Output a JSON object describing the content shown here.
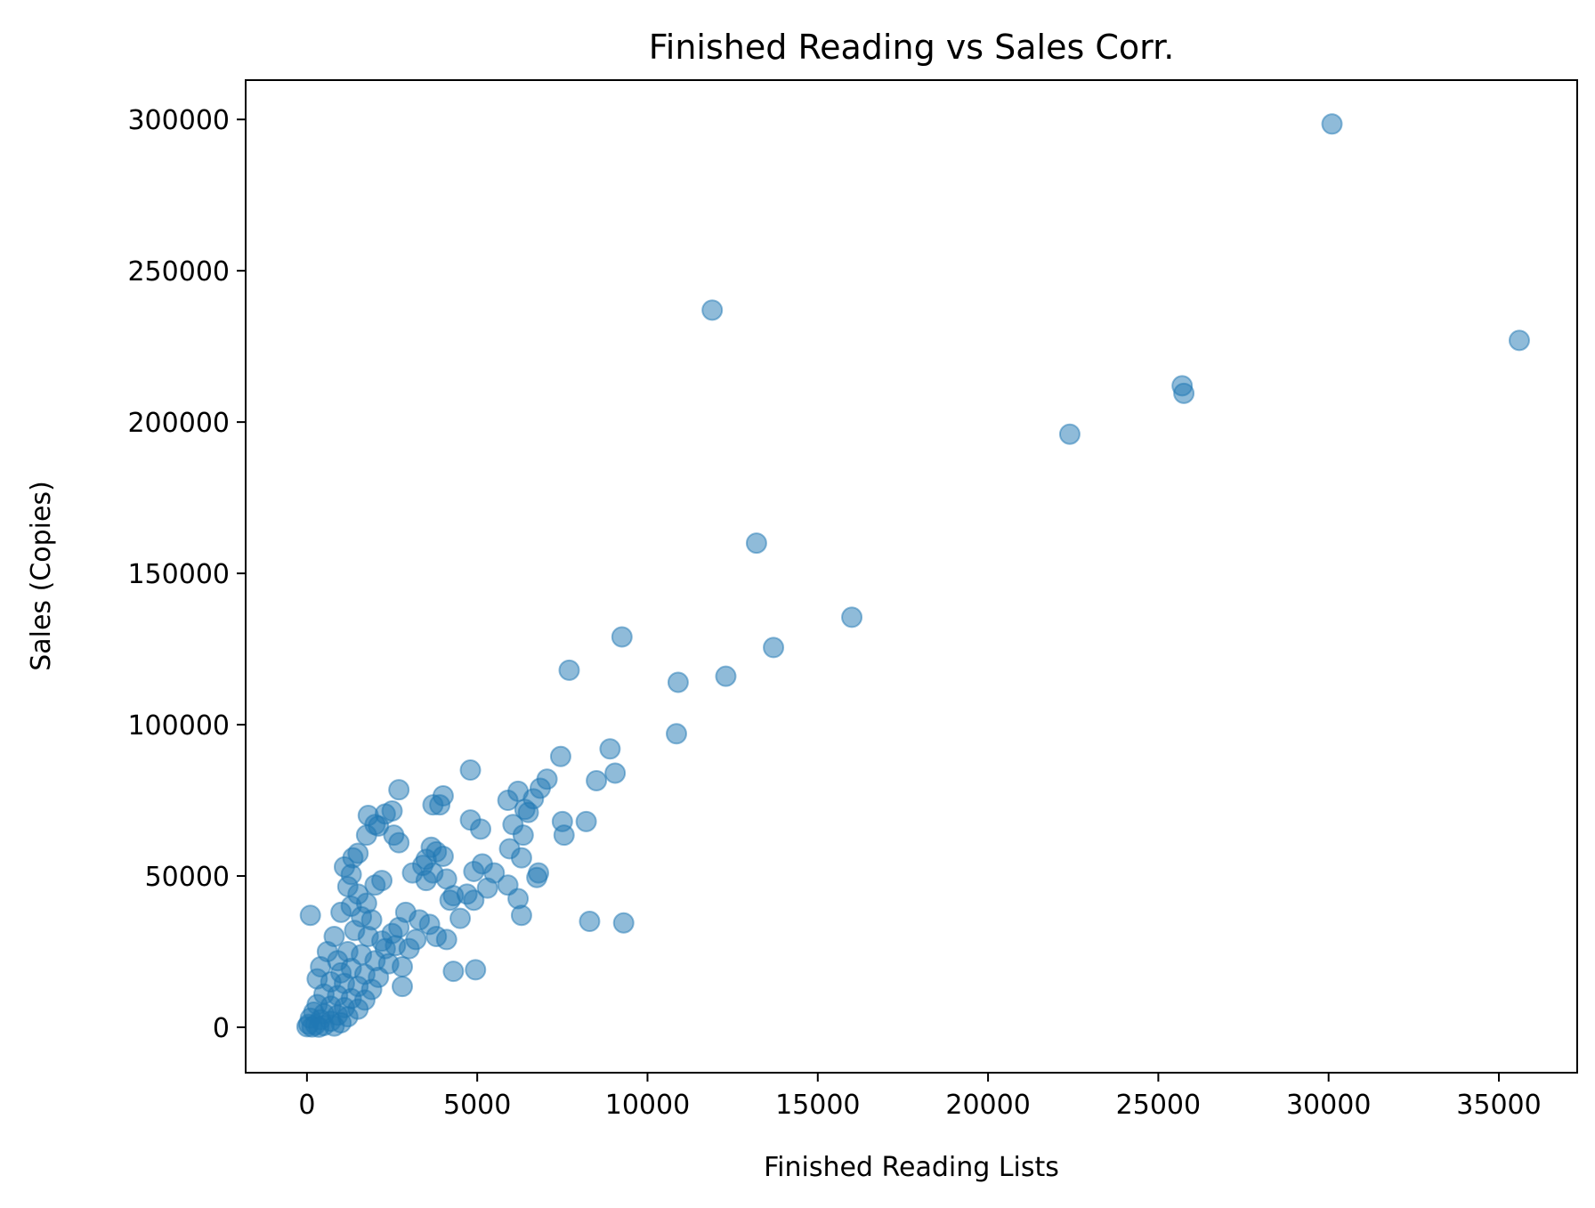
{
  "chart_data": {
    "type": "scatter",
    "title": "Finished Reading vs Sales Corr.",
    "xlabel": "Finished Reading Lists",
    "ylabel": "Sales (Copies)",
    "xlim": [
      -1800,
      37300
    ],
    "ylim": [
      -15000,
      313000
    ],
    "xticks": [
      0,
      5000,
      10000,
      15000,
      20000,
      25000,
      30000,
      35000
    ],
    "xtick_labels": [
      "0",
      "5000",
      "10000",
      "15000",
      "20000",
      "25000",
      "30000",
      "35000"
    ],
    "yticks": [
      0,
      50000,
      100000,
      150000,
      200000,
      250000,
      300000
    ],
    "ytick_labels": [
      "0",
      "50000",
      "100000",
      "150000",
      "200000",
      "250000",
      "300000"
    ],
    "grid": false,
    "colors": {
      "marker": "#1f77b4"
    },
    "marker_alpha": 0.5,
    "series": [
      {
        "points": [
          [
            30100,
            298500
          ],
          [
            11900,
            237000
          ],
          [
            35600,
            227000
          ],
          [
            25700,
            212000
          ],
          [
            25750,
            209500
          ],
          [
            22400,
            196000
          ],
          [
            13200,
            160000
          ],
          [
            16000,
            135500
          ],
          [
            9250,
            129000
          ],
          [
            13700,
            125500
          ],
          [
            7700,
            118000
          ],
          [
            12300,
            116000
          ],
          [
            10900,
            114000
          ],
          [
            10850,
            97000
          ],
          [
            8900,
            92000
          ],
          [
            7450,
            89500
          ],
          [
            4800,
            85000
          ],
          [
            9050,
            84000
          ],
          [
            8500,
            81500
          ],
          [
            7050,
            82000
          ],
          [
            6850,
            79000
          ],
          [
            2700,
            78500
          ],
          [
            6200,
            78000
          ],
          [
            4000,
            76500
          ],
          [
            5900,
            75000
          ],
          [
            6650,
            75500
          ],
          [
            3900,
            73500
          ],
          [
            3700,
            73500
          ],
          [
            6500,
            71000
          ],
          [
            6400,
            72000
          ],
          [
            1800,
            70000
          ],
          [
            2500,
            71500
          ],
          [
            2300,
            70500
          ],
          [
            7500,
            68000
          ],
          [
            8200,
            68000
          ],
          [
            4800,
            68500
          ],
          [
            6050,
            67000
          ],
          [
            2100,
            66500
          ],
          [
            2000,
            67000
          ],
          [
            5100,
            65500
          ],
          [
            1750,
            63500
          ],
          [
            2550,
            63500
          ],
          [
            7550,
            63500
          ],
          [
            6350,
            63500
          ],
          [
            2700,
            61000
          ],
          [
            1500,
            57500
          ],
          [
            3650,
            59500
          ],
          [
            3800,
            58000
          ],
          [
            5950,
            59000
          ],
          [
            1350,
            56000
          ],
          [
            4000,
            56500
          ],
          [
            6300,
            56000
          ],
          [
            3500,
            55500
          ],
          [
            5150,
            54000
          ],
          [
            3400,
            53500
          ],
          [
            1100,
            53000
          ],
          [
            1300,
            50500
          ],
          [
            2200,
            48500
          ],
          [
            3100,
            51000
          ],
          [
            3700,
            51000
          ],
          [
            4900,
            51500
          ],
          [
            6800,
            51000
          ],
          [
            6750,
            49500
          ],
          [
            5500,
            51000
          ],
          [
            4100,
            49000
          ],
          [
            3500,
            48500
          ],
          [
            5900,
            47000
          ],
          [
            5300,
            46000
          ],
          [
            6200,
            42500
          ],
          [
            4700,
            44000
          ],
          [
            4300,
            43500
          ],
          [
            4200,
            42000
          ],
          [
            4900,
            42000
          ],
          [
            4500,
            36000
          ],
          [
            6300,
            37000
          ],
          [
            8300,
            35000
          ],
          [
            9300,
            34500
          ],
          [
            100,
            37000
          ],
          [
            3600,
            34000
          ],
          [
            3800,
            30000
          ],
          [
            4100,
            29000
          ],
          [
            4300,
            18500
          ],
          [
            4950,
            19000
          ],
          [
            2800,
            13500
          ],
          [
            1400,
            32000
          ],
          [
            1800,
            30000
          ],
          [
            2200,
            28500
          ],
          [
            2600,
            27000
          ],
          [
            3000,
            26000
          ],
          [
            1200,
            25000
          ],
          [
            900,
            22000
          ],
          [
            1600,
            24000
          ],
          [
            2000,
            22000
          ],
          [
            2400,
            21000
          ],
          [
            2800,
            20000
          ],
          [
            1000,
            18000
          ],
          [
            1300,
            19500
          ],
          [
            1700,
            17500
          ],
          [
            2100,
            16500
          ],
          [
            700,
            15000
          ],
          [
            1100,
            14500
          ],
          [
            1500,
            13500
          ],
          [
            1900,
            12500
          ],
          [
            500,
            11000
          ],
          [
            900,
            10500
          ],
          [
            1300,
            9500
          ],
          [
            1700,
            9000
          ],
          [
            300,
            7500
          ],
          [
            700,
            7000
          ],
          [
            1100,
            6500
          ],
          [
            1500,
            6000
          ],
          [
            200,
            5000
          ],
          [
            500,
            4500
          ],
          [
            900,
            4000
          ],
          [
            1200,
            3500
          ],
          [
            100,
            3000
          ],
          [
            400,
            2500
          ],
          [
            700,
            2000
          ],
          [
            1000,
            1500
          ],
          [
            50,
            1000
          ],
          [
            250,
            800
          ],
          [
            500,
            600
          ],
          [
            800,
            400
          ],
          [
            0,
            200
          ],
          [
            150,
            100
          ],
          [
            350,
            50
          ],
          [
            2300,
            26000
          ],
          [
            2500,
            31000
          ],
          [
            1900,
            35500
          ],
          [
            1600,
            36500
          ],
          [
            2700,
            33000
          ],
          [
            3200,
            29000
          ],
          [
            1000,
            38000
          ],
          [
            1300,
            40000
          ],
          [
            800,
            30000
          ],
          [
            600,
            25000
          ],
          [
            400,
            20000
          ],
          [
            300,
            16000
          ],
          [
            1500,
            44000
          ],
          [
            1750,
            41000
          ],
          [
            2900,
            38000
          ],
          [
            3300,
            35500
          ],
          [
            2000,
            47000
          ],
          [
            1200,
            46500
          ]
        ]
      }
    ]
  }
}
